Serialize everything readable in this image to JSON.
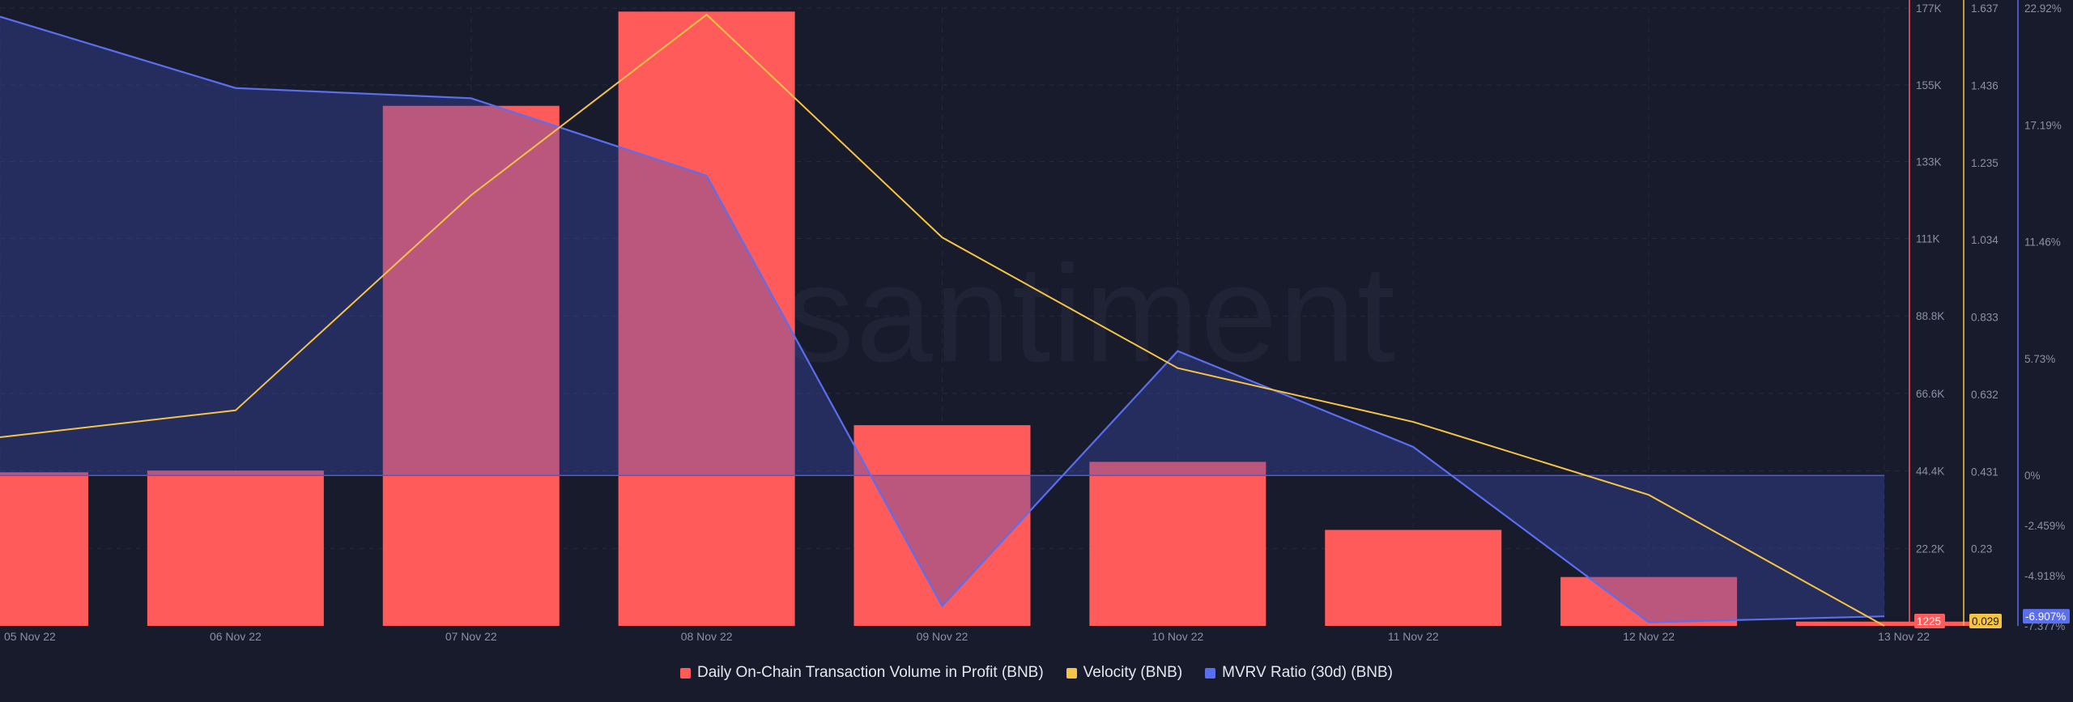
{
  "chart_data": {
    "type": "bar",
    "watermark": "santiment",
    "categories": [
      "05 Nov 22",
      "06 Nov 22",
      "07 Nov 22",
      "08 Nov 22",
      "09 Nov 22",
      "10 Nov 22",
      "11 Nov 22",
      "12 Nov 22",
      "13 Nov 22"
    ],
    "series": [
      {
        "name": "Daily On-Chain Transaction Volume in Profit (BNB)",
        "type": "bar",
        "color": "#ff5b5b",
        "axis": "left-red",
        "values": [
          44000,
          44500,
          149000,
          176000,
          57500,
          47000,
          27500,
          14000,
          1225
        ]
      },
      {
        "name": "Velocity (BNB)",
        "type": "line",
        "color": "#f6c445",
        "axis": "velocity",
        "values": [
          0.52,
          0.59,
          1.15,
          1.62,
          1.04,
          0.7,
          0.56,
          0.37,
          0.029
        ]
      },
      {
        "name": "MVRV Ratio (30d) (BNB)",
        "type": "area",
        "color": "#5a6ef0",
        "axis": "mvrv",
        "values": [
          22.5,
          19.0,
          18.5,
          14.7,
          -6.4,
          6.1,
          1.4,
          -7.2,
          -6.907
        ]
      }
    ],
    "axes": {
      "volume": {
        "ticks": [
          "177K",
          "155K",
          "133K",
          "111K",
          "88.8K",
          "66.6K",
          "44.4K",
          "22.2K"
        ],
        "tick_values": [
          177000,
          155000,
          133000,
          111000,
          88800,
          66600,
          44400,
          22200
        ],
        "range": [
          0,
          177000
        ],
        "current_label": "1225",
        "color": "#ff5b5b"
      },
      "velocity": {
        "ticks": [
          "1.637",
          "1.436",
          "1.235",
          "1.034",
          "0.833",
          "0.632",
          "0.431",
          "0.23"
        ],
        "tick_values": [
          1.637,
          1.436,
          1.235,
          1.034,
          0.833,
          0.632,
          0.431,
          0.23
        ],
        "range": [
          0.029,
          1.637
        ],
        "current_label": "0.029",
        "color": "#f6c445"
      },
      "mvrv": {
        "ticks": [
          "22.92%",
          "17.19%",
          "11.46%",
          "5.73%",
          "0%",
          "-2.459%",
          "-4.918%",
          "-7.377%"
        ],
        "tick_values": [
          22.92,
          17.19,
          11.46,
          5.73,
          0,
          -2.459,
          -4.918,
          -7.377
        ],
        "range": [
          -7.377,
          22.92
        ],
        "current_label": "-6.907%",
        "color": "#5a6ef0"
      }
    },
    "grid": true,
    "legend_position": "bottom-center"
  },
  "legend": [
    {
      "label": "Daily On-Chain Transaction Volume in Profit (BNB)",
      "color": "#ff5b5b"
    },
    {
      "label": "Velocity (BNB)",
      "color": "#f6c445"
    },
    {
      "label": "MVRV Ratio (30d) (BNB)",
      "color": "#5a6ef0"
    }
  ]
}
